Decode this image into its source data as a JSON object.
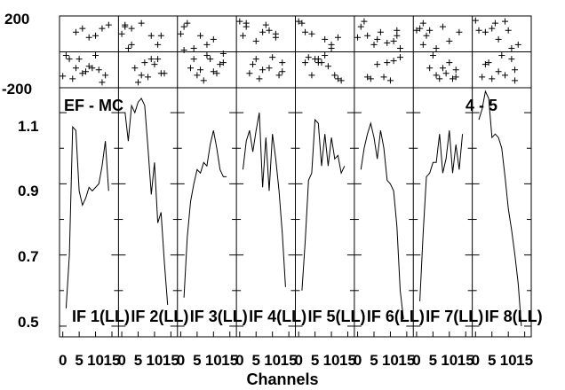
{
  "chart_data": {
    "type": "line",
    "annotation_left": "EF - MC",
    "annotation_right": "4 - 5",
    "xlabel": "Channels",
    "x_tick_labels": [
      "0",
      "5",
      "10",
      "15"
    ],
    "xlim": [
      -1,
      17
    ],
    "top_panel": {
      "type": "scatter",
      "y_tick_labels": [
        "200",
        "-200"
      ],
      "ylim": [
        -200,
        200
      ]
    },
    "bottom_panel": {
      "type": "line",
      "y_tick_labels": [
        "1.1",
        "0.9",
        "0.7",
        "0.5"
      ],
      "ylim": [
        0.47,
        1.17
      ]
    },
    "panels": [
      {
        "label": "IF 1(LL)",
        "amplitude": [
          0.55,
          0.7,
          1.06,
          1.05,
          0.88,
          0.84,
          0.86,
          0.89,
          0.88,
          0.89,
          0.9,
          0.95,
          1.02,
          0.88
        ],
        "phase": [
          [
            0,
            -135
          ],
          [
            1,
            -20
          ],
          [
            2,
            -40
          ],
          [
            3,
            -150
          ],
          [
            4,
            -90
          ],
          [
            5,
            -40
          ],
          [
            6,
            -120
          ],
          [
            7,
            -110
          ],
          [
            8,
            -80
          ],
          [
            9,
            -90
          ],
          [
            10,
            -20
          ],
          [
            11,
            -100
          ],
          [
            12,
            -170
          ],
          [
            13,
            -130
          ],
          [
            4,
            110
          ],
          [
            6,
            130
          ],
          [
            8,
            80
          ],
          [
            10,
            90
          ],
          [
            12,
            130
          ],
          [
            14,
            150
          ]
        ]
      },
      {
        "label": "IF 2(LL)",
        "amplitude": [
          1.1,
          1.02,
          1.12,
          1.1,
          1.13,
          1.14,
          1.12,
          1.0,
          0.87,
          0.96,
          0.79,
          0.82,
          0.68,
          0.56
        ],
        "phase": [
          [
            0,
            100
          ],
          [
            1,
            140
          ],
          [
            2,
            20
          ],
          [
            3,
            40
          ],
          [
            4,
            -90
          ],
          [
            5,
            -170
          ],
          [
            6,
            -130
          ],
          [
            7,
            -60
          ],
          [
            8,
            -140
          ],
          [
            9,
            -40
          ],
          [
            10,
            -70
          ],
          [
            11,
            -40
          ],
          [
            12,
            -120
          ],
          [
            13,
            -120
          ],
          [
            1,
            150
          ],
          [
            3,
            130
          ],
          [
            6,
            160
          ],
          [
            9,
            90
          ],
          [
            11,
            40
          ],
          [
            12,
            90
          ]
        ]
      },
      {
        "label": "IF 3(LL)",
        "amplitude": [
          0.58,
          0.75,
          0.85,
          0.9,
          0.94,
          0.93,
          0.96,
          0.95,
          1.01,
          1.05,
          1.0,
          0.94,
          0.92,
          0.92
        ],
        "phase": [
          [
            0,
            100
          ],
          [
            1,
            140
          ],
          [
            2,
            160
          ],
          [
            3,
            -90
          ],
          [
            4,
            -40
          ],
          [
            5,
            -130
          ],
          [
            6,
            -100
          ],
          [
            7,
            -160
          ],
          [
            8,
            -20
          ],
          [
            9,
            -40
          ],
          [
            10,
            -110
          ],
          [
            11,
            -120
          ],
          [
            12,
            -70
          ],
          [
            13,
            -60
          ],
          [
            1,
            10
          ],
          [
            4,
            20
          ],
          [
            6,
            90
          ],
          [
            8,
            40
          ],
          [
            10,
            70
          ],
          [
            13,
            -10
          ]
        ]
      },
      {
        "label": "IF 4(LL)",
        "amplitude": [
          0.94,
          1.02,
          1.05,
          0.99,
          1.05,
          1.1,
          0.89,
          1.03,
          0.88,
          1.04,
          0.97,
          0.88,
          0.76,
          0.61
        ],
        "phase": [
          [
            0,
            170
          ],
          [
            1,
            90
          ],
          [
            2,
            140
          ],
          [
            3,
            -120
          ],
          [
            4,
            -70
          ],
          [
            5,
            -40
          ],
          [
            6,
            -150
          ],
          [
            7,
            110
          ],
          [
            8,
            150
          ],
          [
            9,
            -90
          ],
          [
            10,
            -30
          ],
          [
            11,
            80
          ],
          [
            12,
            -130
          ],
          [
            13,
            -60
          ],
          [
            2,
            160
          ],
          [
            5,
            60
          ],
          [
            7,
            -100
          ],
          [
            9,
            120
          ],
          [
            11,
            100
          ],
          [
            13,
            -110
          ]
        ]
      },
      {
        "label": "IF 5(LL)",
        "amplitude": [
          0.6,
          0.74,
          0.91,
          0.93,
          1.08,
          1.07,
          0.95,
          1.04,
          0.95,
          1.03,
          0.97,
          0.98,
          0.93,
          0.95
        ],
        "phase": [
          [
            0,
            170
          ],
          [
            1,
            160
          ],
          [
            2,
            110
          ],
          [
            3,
            -30
          ],
          [
            4,
            -130
          ],
          [
            5,
            -40
          ],
          [
            6,
            -60
          ],
          [
            7,
            -60
          ],
          [
            8,
            70
          ],
          [
            9,
            -80
          ],
          [
            10,
            20
          ],
          [
            11,
            -130
          ],
          [
            12,
            -150
          ],
          [
            13,
            -160
          ],
          [
            2,
            -60
          ],
          [
            4,
            100
          ],
          [
            6,
            -40
          ],
          [
            8,
            -20
          ],
          [
            10,
            40
          ],
          [
            12,
            80
          ]
        ]
      },
      {
        "label": "IF 6(LL)",
        "amplitude": [
          0.94,
          1.0,
          1.04,
          1.07,
          1.03,
          0.97,
          1.05,
          1.0,
          0.91,
          0.9,
          0.88,
          0.78,
          0.6,
          0.52
        ],
        "phase": [
          [
            0,
            80
          ],
          [
            1,
            140
          ],
          [
            2,
            170
          ],
          [
            3,
            -140
          ],
          [
            4,
            -150
          ],
          [
            5,
            40
          ],
          [
            6,
            -70
          ],
          [
            7,
            110
          ],
          [
            8,
            -140
          ],
          [
            9,
            -60
          ],
          [
            10,
            -160
          ],
          [
            11,
            -50
          ],
          [
            12,
            90
          ],
          [
            13,
            -30
          ],
          [
            3,
            90
          ],
          [
            6,
            70
          ],
          [
            9,
            50
          ],
          [
            11,
            60
          ],
          [
            12,
            120
          ],
          [
            13,
            20
          ]
        ]
      },
      {
        "label": "IF 7(LL)",
        "amplitude": [
          0.57,
          0.76,
          0.92,
          0.93,
          0.96,
          0.96,
          1.04,
          0.93,
          0.97,
          1.05,
          0.93,
          1.01,
          0.94,
          1.04
        ],
        "phase": [
          [
            0,
            120
          ],
          [
            1,
            130
          ],
          [
            2,
            160
          ],
          [
            3,
            90
          ],
          [
            4,
            -90
          ],
          [
            5,
            -20
          ],
          [
            6,
            20
          ],
          [
            7,
            -150
          ],
          [
            8,
            140
          ],
          [
            9,
            -120
          ],
          [
            10,
            -60
          ],
          [
            11,
            -150
          ],
          [
            12,
            -100
          ],
          [
            13,
            110
          ],
          [
            2,
            40
          ],
          [
            4,
            120
          ],
          [
            6,
            -130
          ],
          [
            8,
            -90
          ],
          [
            10,
            60
          ],
          [
            12,
            -140
          ]
        ]
      },
      {
        "label": "IF 8(LL)",
        "amplitude": [
          1.08,
          1.11,
          1.16,
          1.14,
          1.03,
          1.04,
          1.03,
          1.0,
          0.92,
          0.83,
          0.77,
          0.7,
          0.62,
          0.5
        ],
        "phase": [
          [
            0,
            175
          ],
          [
            1,
            120
          ],
          [
            2,
            -140
          ],
          [
            3,
            110
          ],
          [
            4,
            -60
          ],
          [
            5,
            -150
          ],
          [
            6,
            160
          ],
          [
            7,
            70
          ],
          [
            8,
            -20
          ],
          [
            9,
            -130
          ],
          [
            10,
            120
          ],
          [
            11,
            -40
          ],
          [
            12,
            -160
          ],
          [
            13,
            40
          ],
          [
            3,
            -70
          ],
          [
            5,
            130
          ],
          [
            7,
            -110
          ],
          [
            9,
            170
          ],
          [
            11,
            20
          ],
          [
            12,
            -100
          ]
        ]
      }
    ]
  }
}
